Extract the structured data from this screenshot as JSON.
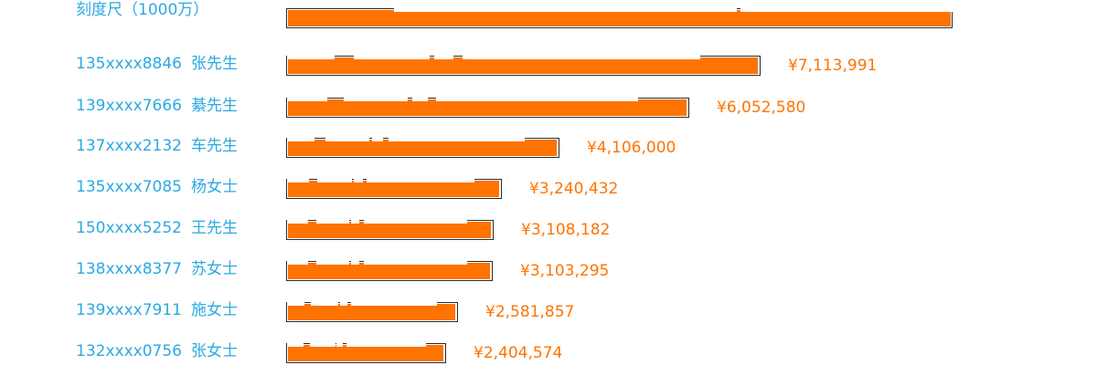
{
  "colors": {
    "label": "#2ca9e1",
    "bar": "#ff7300",
    "value": "#ff7300",
    "border": "#2b2b2b"
  },
  "chart_data": {
    "type": "bar",
    "orientation": "horizontal",
    "scale_label": "刻度尺（1000万）",
    "scale_value": 10000000,
    "categories": [
      "135xxxx8846 张先生",
      "139xxxx7666 綦先生",
      "137xxxx2132 车先生",
      "135xxxx7085 杨女士",
      "150xxxx5252 王先生",
      "138xxxx8377 苏女士",
      "139xxxx7911 施女士",
      "132xxxx0756 张女士"
    ],
    "rows": [
      {
        "phone": "135xxxx8846",
        "name": "张先生",
        "value": 7113991,
        "value_label": "¥7,113,991"
      },
      {
        "phone": "139xxxx7666",
        "name": "綦先生",
        "value": 6052580,
        "value_label": "¥6,052,580"
      },
      {
        "phone": "137xxxx2132",
        "name": "车先生",
        "value": 4106000,
        "value_label": "¥4,106,000"
      },
      {
        "phone": "135xxxx7085",
        "name": "杨女士",
        "value": 3240432,
        "value_label": "¥3,240,432"
      },
      {
        "phone": "150xxxx5252",
        "name": "王先生",
        "value": 3108182,
        "value_label": "¥3,108,182"
      },
      {
        "phone": "138xxxx8377",
        "name": "苏女士",
        "value": 3103295,
        "value_label": "¥3,103,295"
      },
      {
        "phone": "139xxxx7911",
        "name": "施女士",
        "value": 2581857,
        "value_label": "¥2,581,857"
      },
      {
        "phone": "132xxxx0756",
        "name": "张女士",
        "value": 2404574,
        "value_label": "¥2,404,574"
      }
    ],
    "values": [
      7113991,
      6052580,
      4106000,
      3240432,
      3108182,
      3103295,
      2581857,
      2404574
    ],
    "title": "",
    "xlabel": "",
    "ylabel": ""
  }
}
